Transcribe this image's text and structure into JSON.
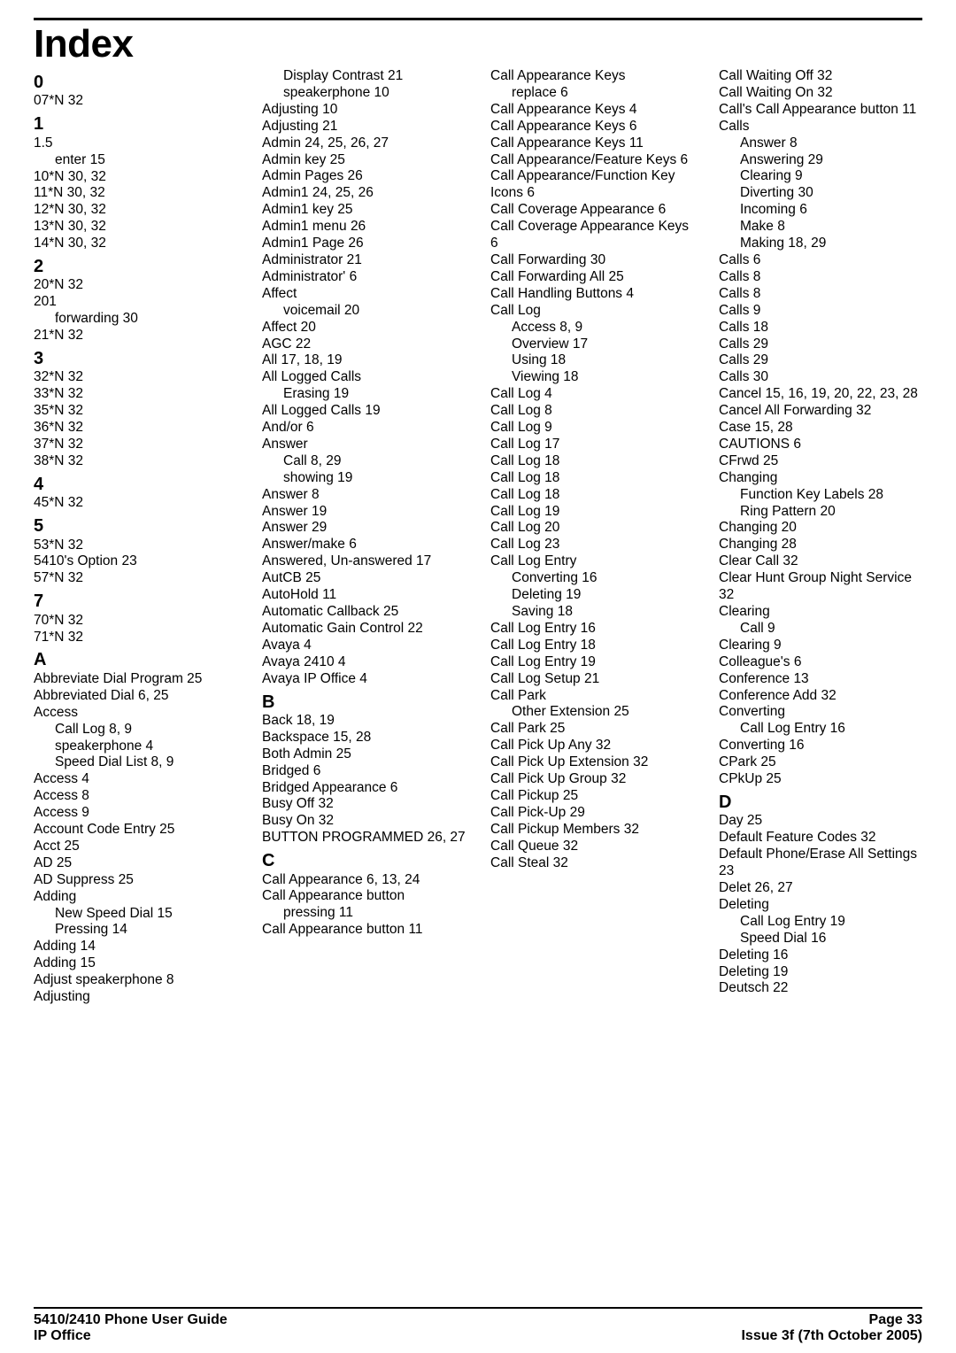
{
  "title": "Index",
  "footer": {
    "leftTop": "5410/2410 Phone User Guide",
    "leftBottom": "IP Office",
    "rightTop": "Page 33",
    "rightBottom": "Issue 3f (7th October 2005)"
  },
  "columns": [
    [
      {
        "t": "head",
        "v": "0"
      },
      {
        "t": "entry",
        "v": "07*N 32"
      },
      {
        "t": "head",
        "v": "1"
      },
      {
        "t": "entry",
        "v": "1.5"
      },
      {
        "t": "sub",
        "v": "enter 15"
      },
      {
        "t": "entry",
        "v": "10*N 30, 32"
      },
      {
        "t": "entry",
        "v": "11*N 30, 32"
      },
      {
        "t": "entry",
        "v": "12*N 30, 32"
      },
      {
        "t": "entry",
        "v": "13*N 30, 32"
      },
      {
        "t": "entry",
        "v": "14*N 30, 32"
      },
      {
        "t": "head",
        "v": "2"
      },
      {
        "t": "entry",
        "v": "20*N 32"
      },
      {
        "t": "entry",
        "v": "201"
      },
      {
        "t": "sub",
        "v": "forwarding 30"
      },
      {
        "t": "entry",
        "v": "21*N 32"
      },
      {
        "t": "head",
        "v": "3"
      },
      {
        "t": "entry",
        "v": "32*N 32"
      },
      {
        "t": "entry",
        "v": "33*N 32"
      },
      {
        "t": "entry",
        "v": "35*N 32"
      },
      {
        "t": "entry",
        "v": "36*N 32"
      },
      {
        "t": "entry",
        "v": "37*N 32"
      },
      {
        "t": "entry",
        "v": "38*N 32"
      },
      {
        "t": "head",
        "v": "4"
      },
      {
        "t": "entry",
        "v": "45*N 32"
      },
      {
        "t": "head",
        "v": "5"
      },
      {
        "t": "entry",
        "v": "53*N 32"
      },
      {
        "t": "entry",
        "v": "5410's Option 23"
      },
      {
        "t": "entry",
        "v": "57*N 32"
      },
      {
        "t": "head",
        "v": "7"
      },
      {
        "t": "entry",
        "v": "70*N 32"
      },
      {
        "t": "entry",
        "v": "71*N 32"
      },
      {
        "t": "head",
        "v": "A"
      },
      {
        "t": "entry",
        "v": "Abbreviate Dial Program 25"
      },
      {
        "t": "entry",
        "v": "Abbreviated Dial 6, 25"
      },
      {
        "t": "entry",
        "v": "Access"
      },
      {
        "t": "sub",
        "v": "Call Log 8, 9"
      },
      {
        "t": "sub",
        "v": "speakerphone 4"
      },
      {
        "t": "sub",
        "v": "Speed Dial List 8, 9"
      },
      {
        "t": "entry",
        "v": "Access 4"
      },
      {
        "t": "entry",
        "v": "Access 8"
      },
      {
        "t": "entry",
        "v": "Access 9"
      },
      {
        "t": "entry",
        "v": "Account Code Entry 25"
      },
      {
        "t": "entry",
        "v": "Acct 25"
      },
      {
        "t": "entry",
        "v": "AD 25"
      },
      {
        "t": "entry",
        "v": "AD Suppress 25"
      },
      {
        "t": "entry",
        "v": "Adding"
      },
      {
        "t": "sub",
        "v": "New Speed Dial 15"
      },
      {
        "t": "sub",
        "v": "Pressing 14"
      },
      {
        "t": "entry",
        "v": "Adding 14"
      },
      {
        "t": "entry",
        "v": "Adding 15"
      },
      {
        "t": "entry",
        "v": "Adjust speakerphone 8"
      },
      {
        "t": "entry",
        "v": "Adjusting"
      }
    ],
    [
      {
        "t": "sub",
        "v": "Display Contrast 21"
      },
      {
        "t": "sub",
        "v": "speakerphone 10"
      },
      {
        "t": "entry",
        "v": "Adjusting 10"
      },
      {
        "t": "entry",
        "v": "Adjusting 21"
      },
      {
        "t": "entry",
        "v": "Admin 24, 25, 26, 27"
      },
      {
        "t": "entry",
        "v": "Admin key 25"
      },
      {
        "t": "entry",
        "v": "Admin Pages 26"
      },
      {
        "t": "entry",
        "v": "Admin1 24, 25, 26"
      },
      {
        "t": "entry",
        "v": "Admin1 key 25"
      },
      {
        "t": "entry",
        "v": "Admin1 menu 26"
      },
      {
        "t": "entry",
        "v": "Admin1 Page 26"
      },
      {
        "t": "entry",
        "v": "Administrator 21"
      },
      {
        "t": "entry",
        "v": "Administrator' 6"
      },
      {
        "t": "entry",
        "v": "Affect"
      },
      {
        "t": "sub",
        "v": "voicemail 20"
      },
      {
        "t": "entry",
        "v": "Affect 20"
      },
      {
        "t": "entry",
        "v": "AGC 22"
      },
      {
        "t": "entry",
        "v": "All 17, 18, 19"
      },
      {
        "t": "entry",
        "v": "All Logged Calls"
      },
      {
        "t": "sub",
        "v": "Erasing 19"
      },
      {
        "t": "entry",
        "v": "All Logged Calls 19"
      },
      {
        "t": "entry",
        "v": "And/or 6"
      },
      {
        "t": "entry",
        "v": "Answer"
      },
      {
        "t": "sub",
        "v": "Call 8, 29"
      },
      {
        "t": "sub",
        "v": "showing 19"
      },
      {
        "t": "entry",
        "v": "Answer 8"
      },
      {
        "t": "entry",
        "v": "Answer 19"
      },
      {
        "t": "entry",
        "v": "Answer 29"
      },
      {
        "t": "entry",
        "v": "Answer/make 6"
      },
      {
        "t": "entry",
        "v": "Answered, Un-answered 17"
      },
      {
        "t": "entry",
        "v": "AutCB 25"
      },
      {
        "t": "entry",
        "v": "AutoHold 11"
      },
      {
        "t": "entry",
        "v": "Automatic Callback 25"
      },
      {
        "t": "entry",
        "v": "Automatic Gain Control 22"
      },
      {
        "t": "entry",
        "v": "Avaya 4"
      },
      {
        "t": "entry",
        "v": "Avaya 2410 4"
      },
      {
        "t": "entry",
        "v": "Avaya IP Office 4"
      },
      {
        "t": "head",
        "v": "B"
      },
      {
        "t": "entry",
        "v": "Back 18, 19"
      },
      {
        "t": "entry",
        "v": "Backspace 15, 28"
      },
      {
        "t": "entry",
        "v": "Both Admin 25"
      },
      {
        "t": "entry",
        "v": "Bridged 6"
      },
      {
        "t": "entry",
        "v": "Bridged Appearance 6"
      },
      {
        "t": "entry",
        "v": "Busy Off 32"
      },
      {
        "t": "entry",
        "v": "Busy On 32"
      },
      {
        "t": "entry",
        "v": "BUTTON PROGRAMMED 26, 27"
      },
      {
        "t": "head",
        "v": "C"
      },
      {
        "t": "entry",
        "v": "Call Appearance 6, 13, 24"
      },
      {
        "t": "entry",
        "v": "Call Appearance button"
      },
      {
        "t": "sub",
        "v": "pressing 11"
      },
      {
        "t": "entry",
        "v": "Call Appearance button 11"
      }
    ],
    [
      {
        "t": "entry",
        "v": "Call Appearance Keys"
      },
      {
        "t": "sub",
        "v": "replace 6"
      },
      {
        "t": "entry",
        "v": "Call Appearance Keys 4"
      },
      {
        "t": "entry",
        "v": "Call Appearance Keys 6"
      },
      {
        "t": "entry",
        "v": "Call Appearance Keys 11"
      },
      {
        "t": "entry",
        "v": "Call Appearance/Feature Keys 6"
      },
      {
        "t": "entry",
        "v": "Call Appearance/Function Key Icons 6"
      },
      {
        "t": "entry",
        "v": "Call Coverage Appearance 6"
      },
      {
        "t": "entry",
        "v": "Call Coverage Appearance Keys 6"
      },
      {
        "t": "entry",
        "v": "Call Forwarding 30"
      },
      {
        "t": "entry",
        "v": "Call Forwarding All 25"
      },
      {
        "t": "entry",
        "v": "Call Handling Buttons 4"
      },
      {
        "t": "entry",
        "v": "Call Log"
      },
      {
        "t": "sub",
        "v": "Access 8, 9"
      },
      {
        "t": "sub",
        "v": "Overview 17"
      },
      {
        "t": "sub",
        "v": "Using 18"
      },
      {
        "t": "sub",
        "v": "Viewing 18"
      },
      {
        "t": "entry",
        "v": "Call Log 4"
      },
      {
        "t": "entry",
        "v": "Call Log 8"
      },
      {
        "t": "entry",
        "v": "Call Log 9"
      },
      {
        "t": "entry",
        "v": "Call Log 17"
      },
      {
        "t": "entry",
        "v": "Call Log 18"
      },
      {
        "t": "entry",
        "v": "Call Log 18"
      },
      {
        "t": "entry",
        "v": "Call Log 18"
      },
      {
        "t": "entry",
        "v": "Call Log 19"
      },
      {
        "t": "entry",
        "v": "Call Log 20"
      },
      {
        "t": "entry",
        "v": "Call Log 23"
      },
      {
        "t": "entry",
        "v": "Call Log Entry"
      },
      {
        "t": "sub",
        "v": "Converting 16"
      },
      {
        "t": "sub",
        "v": "Deleting 19"
      },
      {
        "t": "sub",
        "v": "Saving 18"
      },
      {
        "t": "entry",
        "v": "Call Log Entry 16"
      },
      {
        "t": "entry",
        "v": "Call Log Entry 18"
      },
      {
        "t": "entry",
        "v": "Call Log Entry 19"
      },
      {
        "t": "entry",
        "v": "Call Log Setup 21"
      },
      {
        "t": "entry",
        "v": "Call Park"
      },
      {
        "t": "sub",
        "v": "Other Extension 25"
      },
      {
        "t": "entry",
        "v": "Call Park 25"
      },
      {
        "t": "entry",
        "v": "Call Pick Up Any 32"
      },
      {
        "t": "entry",
        "v": "Call Pick Up Extension 32"
      },
      {
        "t": "entry",
        "v": "Call Pick Up Group 32"
      },
      {
        "t": "entry",
        "v": "Call Pickup 25"
      },
      {
        "t": "entry",
        "v": "Call Pick-Up 29"
      },
      {
        "t": "entry",
        "v": "Call Pickup Members 32"
      },
      {
        "t": "entry",
        "v": "Call Queue 32"
      },
      {
        "t": "entry",
        "v": "Call Steal 32"
      }
    ],
    [
      {
        "t": "entry",
        "v": "Call Waiting Off 32"
      },
      {
        "t": "entry",
        "v": "Call Waiting On 32"
      },
      {
        "t": "entry",
        "v": "Call's Call Appearance button 11"
      },
      {
        "t": "entry",
        "v": "Calls"
      },
      {
        "t": "sub",
        "v": "Answer 8"
      },
      {
        "t": "sub",
        "v": "Answering 29"
      },
      {
        "t": "sub",
        "v": "Clearing 9"
      },
      {
        "t": "sub",
        "v": "Diverting 30"
      },
      {
        "t": "sub",
        "v": "Incoming 6"
      },
      {
        "t": "sub",
        "v": "Make 8"
      },
      {
        "t": "sub",
        "v": "Making 18, 29"
      },
      {
        "t": "entry",
        "v": "Calls 6"
      },
      {
        "t": "entry",
        "v": "Calls 8"
      },
      {
        "t": "entry",
        "v": "Calls 8"
      },
      {
        "t": "entry",
        "v": "Calls 9"
      },
      {
        "t": "entry",
        "v": "Calls 18"
      },
      {
        "t": "entry",
        "v": "Calls 29"
      },
      {
        "t": "entry",
        "v": "Calls 29"
      },
      {
        "t": "entry",
        "v": "Calls 30"
      },
      {
        "t": "entry",
        "v": "Cancel 15, 16, 19, 20, 22, 23, 28"
      },
      {
        "t": "entry",
        "v": "Cancel All Forwarding 32"
      },
      {
        "t": "entry",
        "v": "Case 15, 28"
      },
      {
        "t": "entry",
        "v": "CAUTIONS 6"
      },
      {
        "t": "entry",
        "v": "CFrwd 25"
      },
      {
        "t": "entry",
        "v": "Changing"
      },
      {
        "t": "sub",
        "v": "Function Key Labels 28"
      },
      {
        "t": "sub",
        "v": "Ring Pattern 20"
      },
      {
        "t": "entry",
        "v": "Changing 20"
      },
      {
        "t": "entry",
        "v": "Changing 28"
      },
      {
        "t": "entry",
        "v": "Clear Call 32"
      },
      {
        "t": "entry",
        "v": "Clear Hunt Group Night Service 32"
      },
      {
        "t": "entry",
        "v": "Clearing"
      },
      {
        "t": "sub",
        "v": "Call 9"
      },
      {
        "t": "entry",
        "v": "Clearing 9"
      },
      {
        "t": "entry",
        "v": "Colleague's 6"
      },
      {
        "t": "entry",
        "v": "Conference 13"
      },
      {
        "t": "entry",
        "v": "Conference Add 32"
      },
      {
        "t": "entry",
        "v": "Converting"
      },
      {
        "t": "sub",
        "v": "Call Log Entry 16"
      },
      {
        "t": "entry",
        "v": "Converting 16"
      },
      {
        "t": "entry",
        "v": "CPark 25"
      },
      {
        "t": "entry",
        "v": "CPkUp 25"
      },
      {
        "t": "head",
        "v": "D"
      },
      {
        "t": "entry",
        "v": "Day 25"
      },
      {
        "t": "entry",
        "v": "Default Feature Codes 32"
      },
      {
        "t": "entry",
        "v": "Default Phone/Erase All Settings 23"
      },
      {
        "t": "entry",
        "v": "Delet 26, 27"
      },
      {
        "t": "entry",
        "v": "Deleting"
      },
      {
        "t": "sub",
        "v": "Call Log Entry 19"
      },
      {
        "t": "sub",
        "v": "Speed Dial 16"
      },
      {
        "t": "entry",
        "v": "Deleting 16"
      },
      {
        "t": "entry",
        "v": "Deleting 19"
      },
      {
        "t": "entry",
        "v": "Deutsch 22"
      }
    ]
  ]
}
